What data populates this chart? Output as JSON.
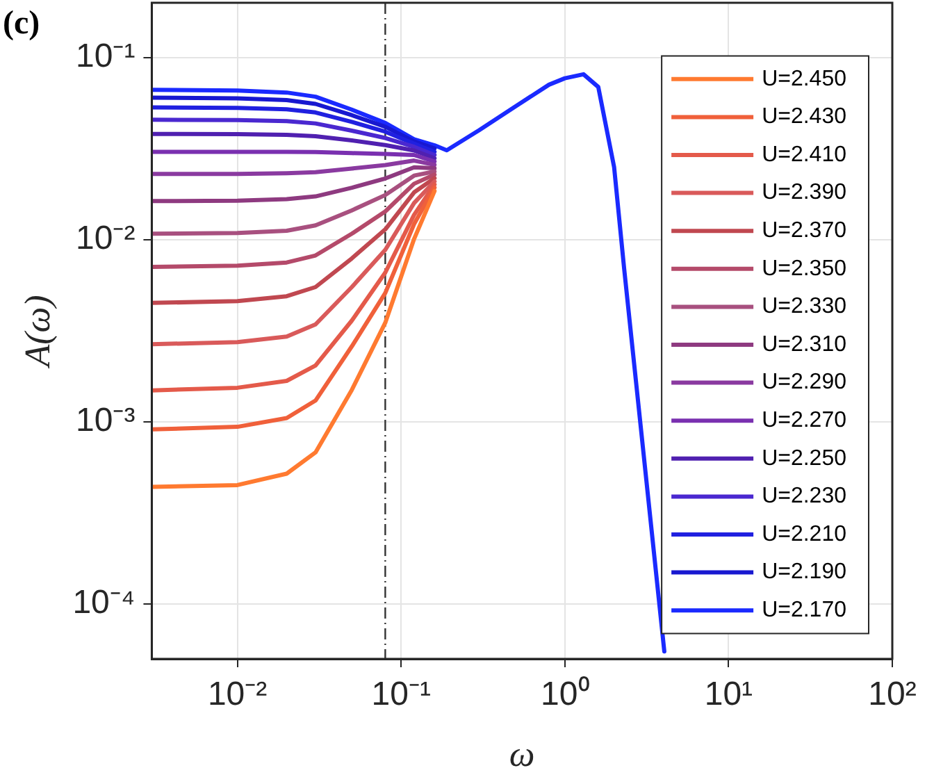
{
  "chart_data": {
    "type": "line",
    "xlabel": "ω",
    "ylabel": "A(ω)",
    "annotations": [
      "(c)"
    ],
    "log": "xy",
    "grid": true,
    "legend": "right",
    "xlim": [
      0.003,
      100
    ],
    "ylim": [
      5e-05,
      0.2
    ],
    "xticks": [
      {
        "value": 0.01,
        "label": "10⁻²"
      },
      {
        "value": 0.1,
        "label": "10⁻¹"
      },
      {
        "value": 1,
        "label": "10⁰"
      },
      {
        "value": 10,
        "label": "10¹"
      },
      {
        "value": 100,
        "label": "10²"
      }
    ],
    "yticks": [
      {
        "value": 0.0001,
        "label": "10⁻⁴"
      },
      {
        "value": 0.001,
        "label": "10⁻³"
      },
      {
        "value": 0.01,
        "label": "10⁻²"
      },
      {
        "value": 0.1,
        "label": "10⁻¹"
      }
    ],
    "ref_lines": [
      {
        "axis": "x",
        "value": 0.08,
        "color": "#333333",
        "line_style": "dashdot"
      }
    ],
    "x": [
      0.003,
      0.01,
      0.02,
      0.03,
      0.05,
      0.08,
      0.12,
      0.16
    ],
    "series": [
      {
        "name": "U=2.450",
        "color": "#ff7a30",
        "values": [
          0.00044,
          0.00045,
          0.00052,
          0.00068,
          0.0015,
          0.0035,
          0.0101,
          0.0185
        ]
      },
      {
        "name": "U=2.430",
        "color": "#f0603a",
        "values": [
          0.00091,
          0.00094,
          0.00105,
          0.00131,
          0.0026,
          0.0051,
          0.0122,
          0.0193
        ]
      },
      {
        "name": "U=2.410",
        "color": "#e45a4a",
        "values": [
          0.00149,
          0.00154,
          0.00168,
          0.00204,
          0.0036,
          0.0066,
          0.0137,
          0.0201
        ]
      },
      {
        "name": "U=2.390",
        "color": "#d95a5a",
        "values": [
          0.00267,
          0.00274,
          0.00294,
          0.00343,
          0.0055,
          0.0088,
          0.0159,
          0.0209
        ]
      },
      {
        "name": "U=2.370",
        "color": "#c04850",
        "values": [
          0.0045,
          0.0046,
          0.0049,
          0.0055,
          0.0079,
          0.0114,
          0.0182,
          0.0218
        ]
      },
      {
        "name": "U=2.350",
        "color": "#b44a6a",
        "values": [
          0.0071,
          0.0072,
          0.0075,
          0.0082,
          0.0108,
          0.0143,
          0.0203,
          0.0228
        ]
      },
      {
        "name": "U=2.330",
        "color": "#a8507f",
        "values": [
          0.0108,
          0.0109,
          0.0112,
          0.012,
          0.0145,
          0.0176,
          0.0225,
          0.0237
        ]
      },
      {
        "name": "U=2.310",
        "color": "#8e3a80",
        "values": [
          0.0163,
          0.0164,
          0.0167,
          0.0173,
          0.0193,
          0.0217,
          0.025,
          0.0247
        ]
      },
      {
        "name": "U=2.290",
        "color": "#8a3aa0",
        "values": [
          0.023,
          0.023,
          0.0232,
          0.0235,
          0.0246,
          0.0257,
          0.0272,
          0.0258
        ]
      },
      {
        "name": "U=2.270",
        "color": "#7a30b0",
        "values": [
          0.0304,
          0.0304,
          0.0304,
          0.0303,
          0.0299,
          0.0296,
          0.0292,
          0.0269
        ]
      },
      {
        "name": "U=2.250",
        "color": "#5020b0",
        "values": [
          0.0381,
          0.038,
          0.0377,
          0.037,
          0.0351,
          0.0331,
          0.0309,
          0.028
        ]
      },
      {
        "name": "U=2.230",
        "color": "#4a28d0",
        "values": [
          0.0456,
          0.0454,
          0.0448,
          0.0435,
          0.0397,
          0.0362,
          0.0324,
          0.0292
        ]
      },
      {
        "name": "U=2.210",
        "color": "#2020e0",
        "values": [
          0.0533,
          0.053,
          0.052,
          0.05,
          0.0444,
          0.0392,
          0.0337,
          0.0304
        ]
      },
      {
        "name": "U=2.190",
        "color": "#1818d0",
        "values": [
          0.0603,
          0.0598,
          0.0585,
          0.0557,
          0.0483,
          0.0417,
          0.0347,
          0.0317
        ]
      },
      {
        "name": "U=2.170",
        "color": "#1a2aff",
        "x": [
          0.003,
          0.01,
          0.02,
          0.03,
          0.05,
          0.08,
          0.12,
          0.16,
          0.19,
          0.3,
          0.5,
          0.8,
          1,
          1.3,
          1.6,
          2,
          2.3,
          4.05
        ],
        "values": [
          0.0666,
          0.066,
          0.0643,
          0.061,
          0.0518,
          0.0438,
          0.0356,
          0.033,
          0.031,
          0.04,
          0.054,
          0.071,
          0.077,
          0.081,
          0.069,
          0.025,
          0.007,
          5.5e-05
        ]
      }
    ]
  }
}
